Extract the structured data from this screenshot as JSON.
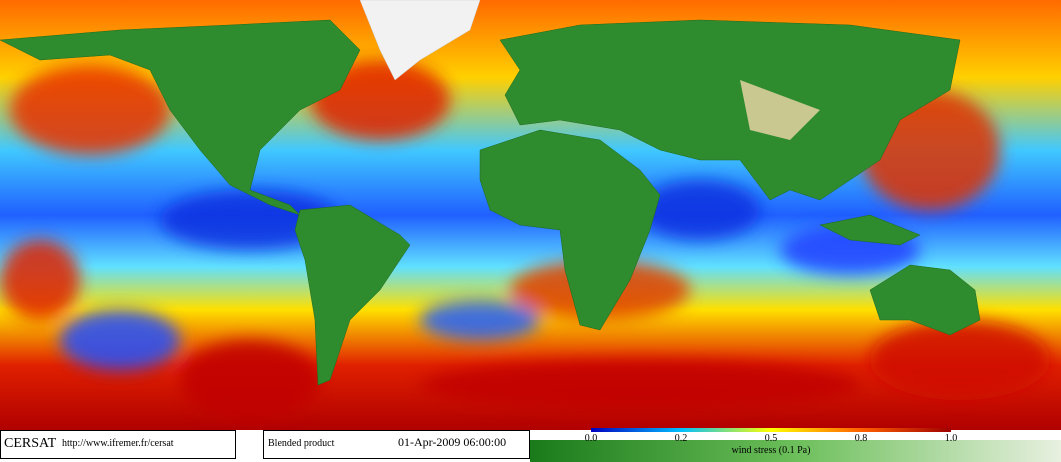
{
  "footer": {
    "logo": "CERSAT",
    "url": "http://www.ifremer.fr/cersat",
    "product": "Blended product",
    "datetime": "01-Apr-2009 06:00:00"
  },
  "colorbar": {
    "ticks": [
      {
        "value": 0,
        "label": "0.0"
      },
      0.2,
      0.5,
      0.8,
      {
        "value": 1,
        "label": "1.0"
      }
    ],
    "label": "wind stress (0.1 Pa)"
  }
}
